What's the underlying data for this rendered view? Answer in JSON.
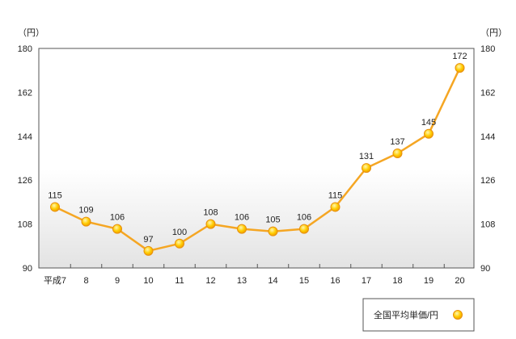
{
  "chart_data": {
    "type": "line",
    "categories": [
      "平成7",
      "8",
      "9",
      "10",
      "11",
      "12",
      "13",
      "14",
      "15",
      "16",
      "17",
      "18",
      "19",
      "20"
    ],
    "series": [
      {
        "name": "全国平均単価/円",
        "values": [
          115,
          109,
          106,
          97,
          100,
          108,
          106,
          105,
          106,
          115,
          131,
          137,
          145,
          172
        ]
      }
    ],
    "y_unit_left": "（円）",
    "y_unit_right": "（円）",
    "ylim": [
      90,
      180
    ],
    "yticks": [
      90,
      108,
      126,
      144,
      162,
      180
    ],
    "grid": false,
    "legend_position": "bottom-right",
    "colors": {
      "line": "#f5a623",
      "marker_fill": "#ffcc00",
      "marker_stroke": "#e8900c",
      "plot_bg_top": "#ffffff",
      "plot_bg_bottom": "#e3e3e3"
    }
  }
}
